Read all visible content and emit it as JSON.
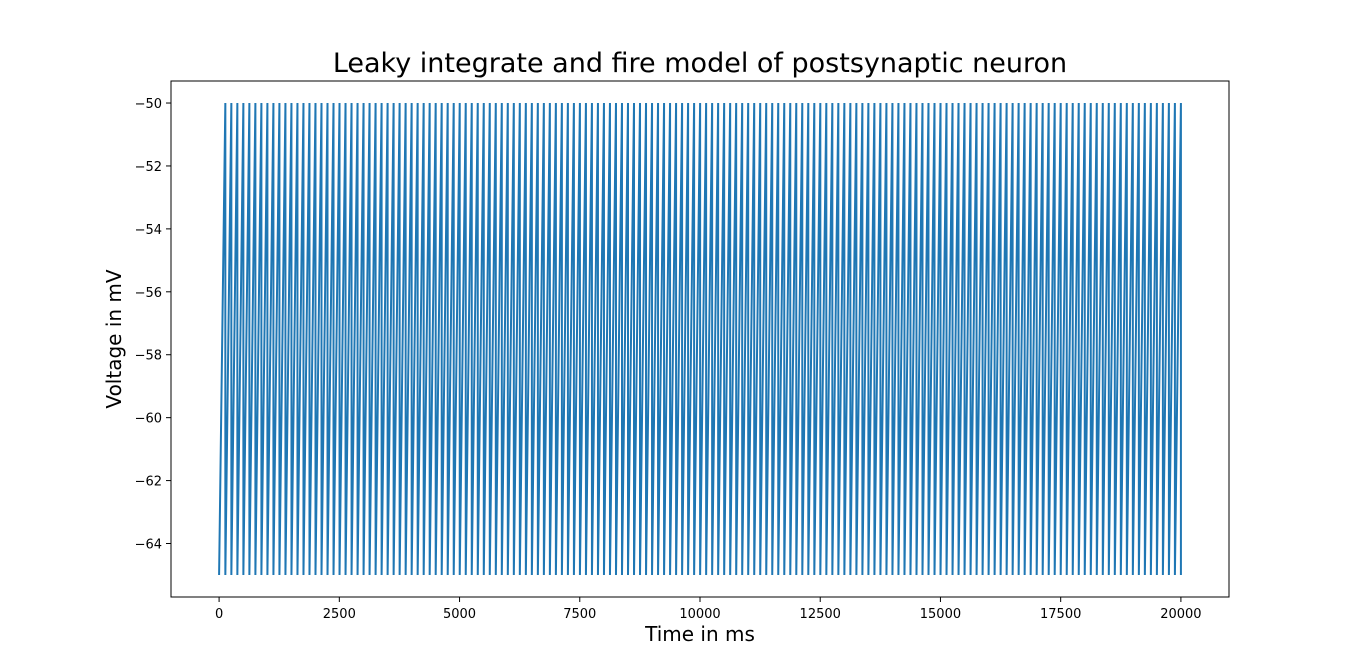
{
  "chart_data": {
    "type": "line",
    "title": "Leaky integrate and fire model of postsynaptic neuron",
    "xlabel": "Time in ms",
    "ylabel": "Voltage in mV",
    "xlim": [
      -1000,
      21000
    ],
    "ylim": [
      -65.7,
      -49.3
    ],
    "x_ticks": [
      0,
      2500,
      5000,
      7500,
      10000,
      12500,
      15000,
      17500,
      20000
    ],
    "x_tick_labels": [
      "0",
      "2500",
      "5000",
      "7500",
      "10000",
      "12500",
      "15000",
      "17500",
      "20000"
    ],
    "y_ticks": [
      -64,
      -62,
      -60,
      -58,
      -56,
      -54,
      -52,
      -50
    ],
    "y_tick_labels": [
      "−64",
      "−62",
      "−60",
      "−58",
      "−56",
      "−54",
      "−52",
      "−50"
    ],
    "grid": false,
    "legend": "none",
    "series": [
      {
        "color": "#1f77b4",
        "pattern": "sawtooth",
        "start_time": 0,
        "end_time": 20000,
        "reset_voltage": -65,
        "threshold_voltage": -50,
        "first_rise_time": 130,
        "spike_count": 160,
        "final_voltage": -63.2
      }
    ]
  }
}
